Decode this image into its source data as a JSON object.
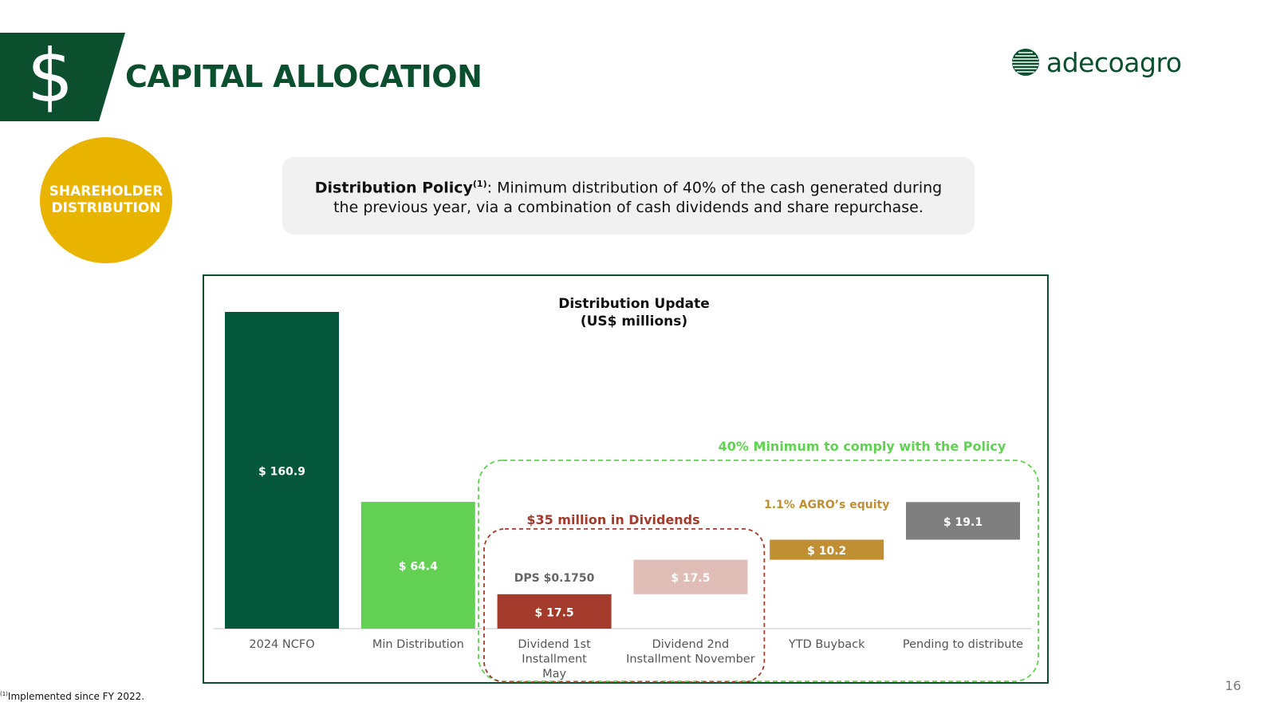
{
  "header": {
    "title": "CAPITAL ALLOCATION",
    "icon": "dollar-icon",
    "icon_glyph": "$",
    "band_color": "#0b4f2f"
  },
  "logo": {
    "text": "adecoagro"
  },
  "badge": {
    "line1": "SHAREHOLDER",
    "line2": "DISTRIBUTION",
    "color": "#e8b400"
  },
  "policy": {
    "label": "Distribution Policy",
    "superscript": "(1)",
    "text": ": Minimum distribution of 40% of the cash generated during the previous year, via a combination of cash dividends and share repurchase."
  },
  "chart_data": {
    "type": "bar",
    "title": "Distribution Update",
    "subtitle": "(US$ millions)",
    "categories": [
      "2024 NCFO",
      "Min Distribution",
      "Dividend 1st Installment May",
      "Dividend 2nd Installment November",
      "YTD Buyback",
      "Pending to distribute"
    ],
    "category_lines": [
      [
        "2024 NCFO"
      ],
      [
        "Min Distribution"
      ],
      [
        "Dividend 1st",
        "Installment",
        "May"
      ],
      [
        "Dividend 2nd",
        "Installment November"
      ],
      [
        "YTD Buyback"
      ],
      [
        "Pending to distribute"
      ]
    ],
    "values": [
      160.9,
      64.4,
      17.5,
      17.5,
      10.2,
      19.1
    ],
    "bases": [
      0,
      0,
      0,
      17.5,
      35.0,
      45.2
    ],
    "labels": [
      "$ 160.9",
      "$ 64.4",
      "$ 17.5",
      "$ 17.5",
      "$ 10.2",
      "$ 19.1"
    ],
    "colors": [
      "#04573a",
      "#62d153",
      "#a33a2b",
      "#e0bdb7",
      "#c08f34",
      "#7f7f7f"
    ],
    "annotations": {
      "dps": "DPS $0.1750",
      "equity": "1.1% AGRO’s equity",
      "dividends": "$35 million in Dividends",
      "policy_min": "40% Minimum to comply with the Policy"
    },
    "annotation_colors": {
      "dps": "#666666",
      "equity": "#c08f34",
      "dividends": "#a33a2b",
      "policy_min": "#62d153"
    },
    "ylim": [
      0,
      160.9
    ],
    "grid": false,
    "legend": "none"
  },
  "footnote": {
    "mark": "(1)",
    "text": "Implemented since FY 2022."
  },
  "page_number": "16"
}
